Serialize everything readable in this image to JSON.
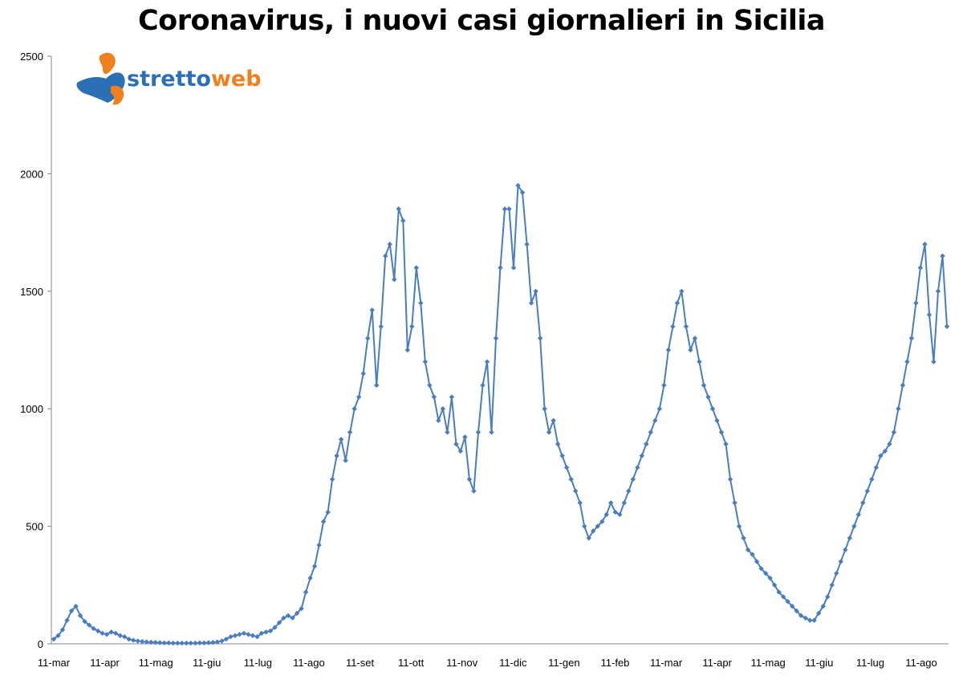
{
  "chart_data": {
    "type": "line",
    "title": "Coronavirus, i nuovi casi giornalieri in Sicilia",
    "xlabel": "",
    "ylabel": "",
    "ylim": [
      0,
      2500
    ],
    "yticks": [
      "0",
      "500",
      "1000",
      "1500",
      "2000",
      "2500"
    ],
    "x_tick_labels": [
      "11-mar",
      "11-apr",
      "11-mag",
      "11-giu",
      "11-lug",
      "11-ago",
      "11-set",
      "11-ott",
      "11-nov",
      "11-dic",
      "11-gen",
      "11-feb",
      "11-mar",
      "11-apr",
      "11-mag",
      "11-giu",
      "11-lug",
      "11-ago"
    ],
    "grid": false,
    "legend": "none",
    "series": [
      {
        "color": "#4a7ebb",
        "x_start": "11-mar",
        "step_days": 3,
        "values": [
          20,
          35,
          60,
          100,
          140,
          160,
          120,
          95,
          80,
          65,
          55,
          45,
          40,
          50,
          45,
          35,
          30,
          20,
          15,
          12,
          10,
          8,
          7,
          6,
          5,
          4,
          4,
          3,
          3,
          3,
          3,
          3,
          3,
          4,
          4,
          5,
          6,
          8,
          12,
          20,
          30,
          35,
          40,
          45,
          40,
          35,
          30,
          45,
          50,
          55,
          70,
          90,
          110,
          120,
          110,
          130,
          150,
          220,
          280,
          330,
          420,
          520,
          560,
          700,
          800,
          870,
          780,
          900,
          1000,
          1050,
          1150,
          1300,
          1420,
          1100,
          1350,
          1650,
          1700,
          1550,
          1850,
          1800,
          1250,
          1350,
          1600,
          1450,
          1200,
          1100,
          1050,
          950,
          1000,
          900,
          1050,
          850,
          820,
          880,
          700,
          650,
          900,
          1100,
          1200,
          900,
          1300,
          1600,
          1850,
          1850,
          1600,
          1950,
          1920,
          1700,
          1450,
          1500,
          1300,
          1000,
          900,
          950,
          850,
          800,
          750,
          700,
          650,
          600,
          500,
          450,
          480,
          500,
          520,
          550,
          600,
          560,
          550,
          600,
          650,
          700,
          750,
          800,
          850,
          900,
          950,
          1000,
          1100,
          1250,
          1350,
          1450,
          1500,
          1350,
          1250,
          1300,
          1200,
          1100,
          1050,
          1000,
          950,
          900,
          850,
          700,
          600,
          500,
          450,
          400,
          380,
          350,
          320,
          300,
          280,
          250,
          220,
          200,
          180,
          160,
          140,
          120,
          110,
          100,
          100,
          130,
          160,
          200,
          250,
          300,
          350,
          400,
          450,
          500,
          550,
          600,
          650,
          700,
          750,
          800,
          820,
          850,
          900,
          1000,
          1100,
          1200,
          1300,
          1450,
          1600,
          1700,
          1400,
          1200,
          1500,
          1650,
          1350
        ]
      }
    ]
  },
  "logo": {
    "word_a": "stretto",
    "word_b": "web",
    "color_a": "#2b6fb5",
    "color_b": "#f07f1e"
  }
}
